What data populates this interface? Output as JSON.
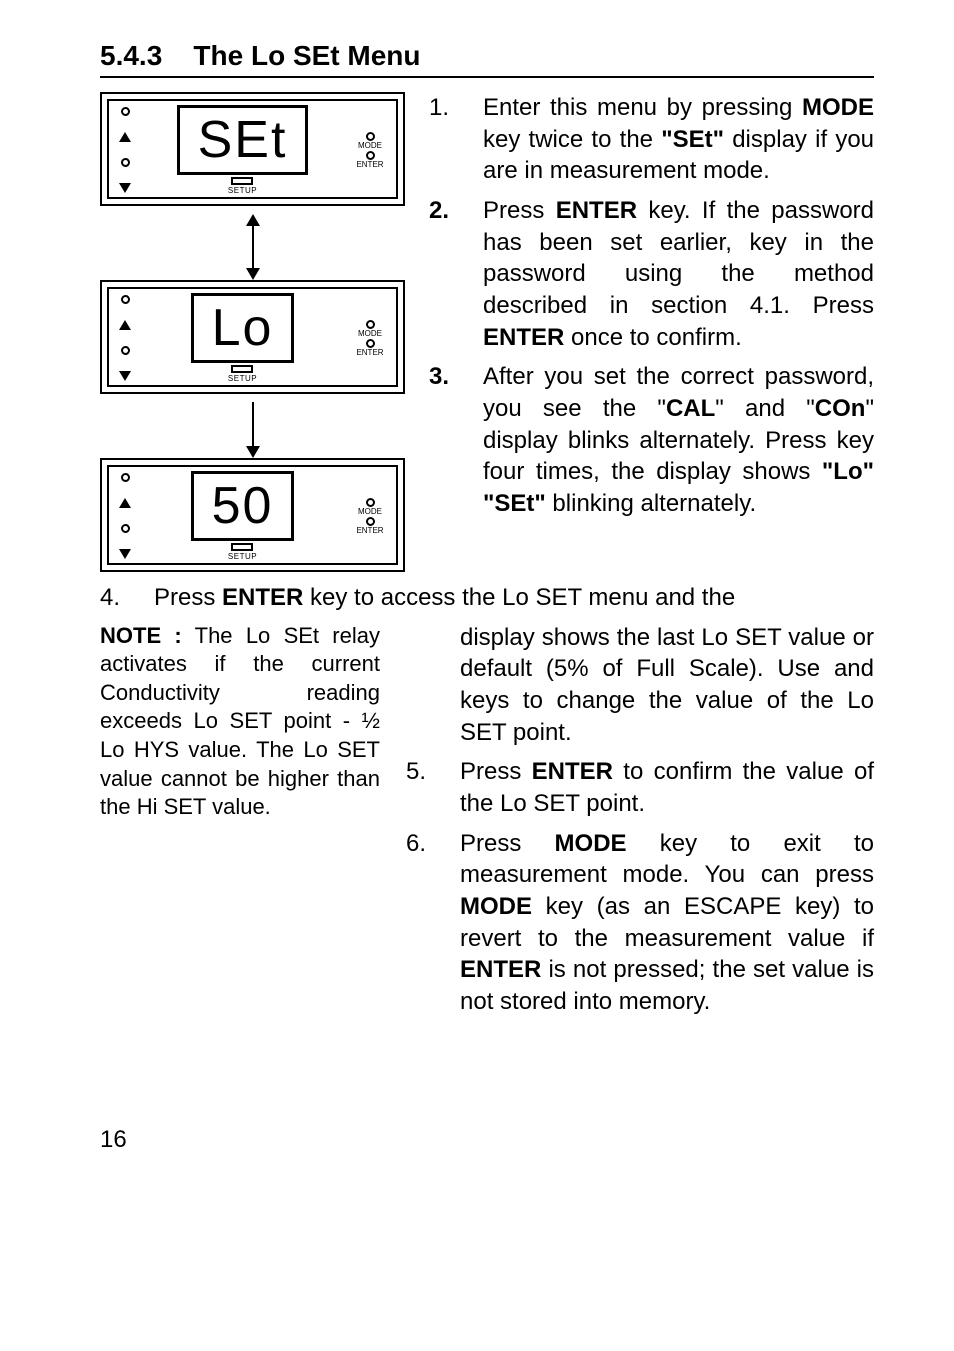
{
  "heading": {
    "num": "5.4.3",
    "title": "The Lo SEt Menu"
  },
  "devices": [
    {
      "lcd": "SEt"
    },
    {
      "lcd": "Lo"
    },
    {
      "lcd": "50"
    }
  ],
  "deviceLabels": {
    "mode": "MODE",
    "enter": "ENTER",
    "setup": "SETUP"
  },
  "steps": {
    "s1_num": "1.",
    "s1": "Enter this menu by pressing <b>MODE</b> key twice to the <b>\"SEt\"</b> display if you are in measurement mode.",
    "s2_num": "2.",
    "s2": "Press <b>ENTER</b> key. If the password has been set earlier, key in the password using the method described in section 4.1. Press <b>ENTER</b> once to confirm.",
    "s3_num": "3.",
    "s3": "After you set the correct password, you see the \"<b>CAL</b>\" and \"<b>COn</b>\" display blinks alternately. Press key four times, the display shows <b>\"Lo\" \"SEt\"</b> blinking alternately.",
    "s4_num": "4.",
    "s4_lead": "Press <b>ENTER</b> key to access the Lo SET menu and the",
    "s4_tail": "display shows the last Lo SET value or default (5% of Full Scale). Use and keys to change the value of the Lo SET point.",
    "s5_num": "5.",
    "s5": "Press <b>ENTER</b> to confirm the value of the Lo SET point.",
    "s6_num": "6.",
    "s6": "Press <b>MODE</b> key to exit to measurement mode. You can press <b>MODE</b> key (as an ESCAPE key) to revert to the measurement value if <b>ENTER</b> is not pressed; the set value is not stored into memory."
  },
  "note_label": "NOTE :",
  "note": "The Lo SEt relay activates if the current Conductivity reading exceeds Lo SET point - ½ Lo HYS value. The Lo SET value cannot be higher than the Hi SET value.",
  "page": "16"
}
